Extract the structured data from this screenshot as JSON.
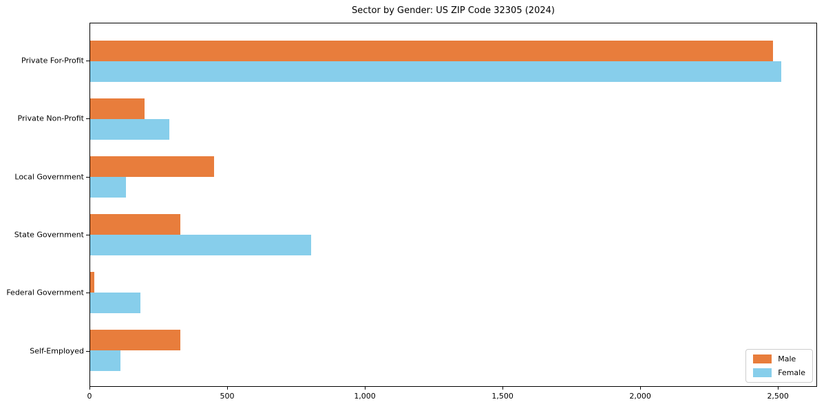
{
  "title": "Sector by Gender: US ZIP Code 32305 (2024)",
  "chart_data": {
    "type": "bar",
    "orientation": "horizontal",
    "title": "Sector by Gender: US ZIP Code 32305 (2024)",
    "categories": [
      "Private For-Profit",
      "Private Non-Profit",
      "Local Government",
      "State Government",
      "Federal Government",
      "Self-Employed"
    ],
    "series": [
      {
        "name": "Male",
        "color": "#e87d3c",
        "values": [
          2485,
          198,
          450,
          328,
          15,
          328
        ]
      },
      {
        "name": "Female",
        "color": "#87ceeb",
        "values": [
          2515,
          288,
          130,
          805,
          183,
          110
        ]
      }
    ],
    "xlabel": "",
    "ylabel": "",
    "xlim": [
      0,
      2642
    ],
    "x_ticks": [
      0,
      500,
      1000,
      1500,
      2000,
      2500
    ],
    "x_tick_labels": [
      "0",
      "500",
      "1,000",
      "1,500",
      "2,000",
      "2,500"
    ],
    "grid": false,
    "legend_position": "lower right"
  },
  "legend": {
    "items": [
      {
        "label": "Male",
        "color": "#e87d3c"
      },
      {
        "label": "Female",
        "color": "#87ceeb"
      }
    ]
  }
}
